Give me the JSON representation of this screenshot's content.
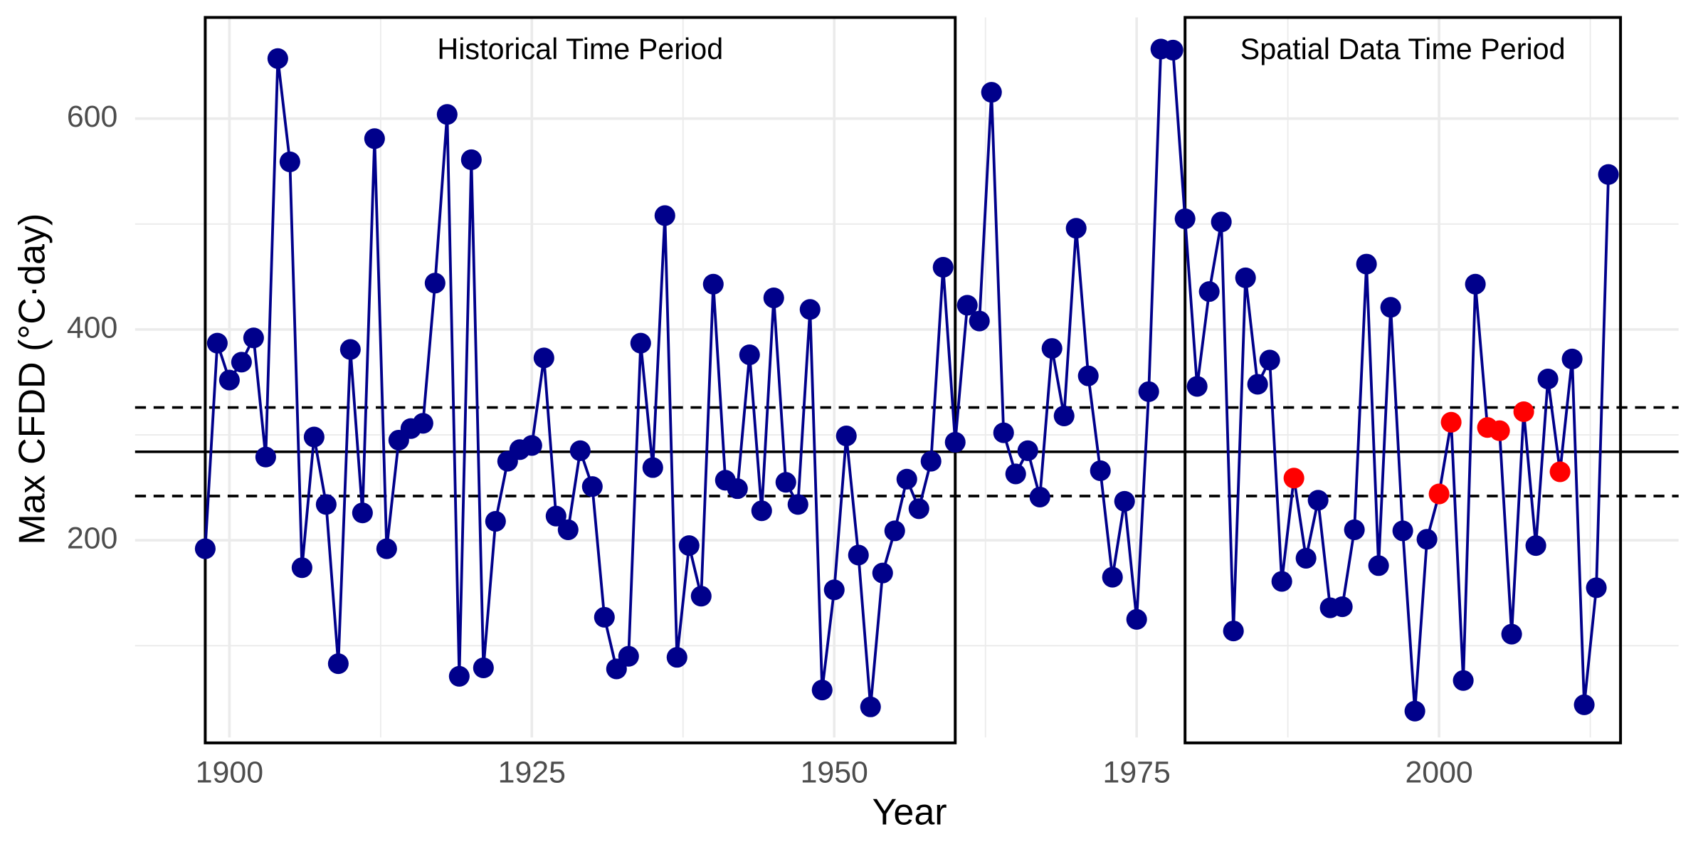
{
  "chart_data": {
    "type": "line",
    "x_label": "Year",
    "y_label": "Max CFDD (°C·day)",
    "x": [
      1898,
      1899,
      1900,
      1901,
      1902,
      1903,
      1904,
      1905,
      1906,
      1907,
      1908,
      1909,
      1910,
      1911,
      1912,
      1913,
      1914,
      1915,
      1916,
      1917,
      1918,
      1919,
      1920,
      1921,
      1922,
      1923,
      1924,
      1925,
      1926,
      1927,
      1928,
      1929,
      1930,
      1931,
      1932,
      1933,
      1934,
      1935,
      1936,
      1937,
      1938,
      1939,
      1940,
      1941,
      1942,
      1943,
      1944,
      1945,
      1946,
      1947,
      1948,
      1949,
      1950,
      1951,
      1952,
      1953,
      1954,
      1955,
      1956,
      1957,
      1958,
      1959,
      1960,
      1961,
      1962,
      1963,
      1964,
      1965,
      1966,
      1967,
      1968,
      1969,
      1970,
      1971,
      1972,
      1973,
      1974,
      1975,
      1976,
      1977,
      1978,
      1979,
      1980,
      1981,
      1982,
      1983,
      1984,
      1985,
      1986,
      1987,
      1988,
      1989,
      1990,
      1991,
      1992,
      1993,
      1994,
      1995,
      1996,
      1997,
      1998,
      1999,
      2000,
      2001,
      2002,
      2003,
      2004,
      2005,
      2006,
      2007,
      2008,
      2009,
      2010,
      2011,
      2012,
      2013,
      2014
    ],
    "values": [
      192,
      387,
      352,
      369,
      392,
      279,
      657,
      559,
      174,
      298,
      234,
      83,
      381,
      226,
      581,
      192,
      295,
      306,
      311,
      444,
      604,
      71,
      561,
      79,
      218,
      275,
      286,
      290,
      373,
      223,
      210,
      285,
      251,
      127,
      78,
      90,
      387,
      269,
      508,
      89,
      195,
      147,
      443,
      257,
      249,
      376,
      228,
      430,
      255,
      234,
      419,
      58,
      153,
      299,
      186,
      42,
      169,
      209,
      258,
      230,
      275,
      459,
      293,
      423,
      408,
      625,
      302,
      263,
      285,
      241,
      382,
      318,
      496,
      356,
      266,
      165,
      237,
      125,
      341,
      666,
      665,
      505,
      346,
      436,
      502,
      114,
      449,
      348,
      371,
      161,
      259,
      183,
      238,
      136,
      137,
      210,
      462,
      176,
      421,
      209,
      38,
      201,
      244,
      312,
      67,
      443,
      307,
      304,
      111,
      322,
      195,
      353,
      265,
      372,
      44,
      155,
      547
    ],
    "color": "#00008b",
    "highlight_x": [
      1988,
      2000,
      2001,
      2004,
      2005,
      2007,
      2010
    ],
    "highlight_color": "#ff0000",
    "hlines": [
      {
        "y": 284,
        "style": "solid"
      },
      {
        "y": 242,
        "style": "dashed"
      },
      {
        "y": 326,
        "style": "dashed"
      }
    ],
    "periods": [
      {
        "label": "Historical Time Period",
        "start": 1898,
        "end": 1960
      },
      {
        "label": "Spatial Data Time Period",
        "start": 1979,
        "end": 2015
      }
    ],
    "xlim": [
      1892.2,
      2019.8
    ],
    "xticks": [
      1900,
      1925,
      1950,
      1975,
      2000
    ],
    "minor_xticks": [
      1912.5,
      1937.5,
      1962.5,
      1987.5,
      2012.5
    ],
    "ylim": [
      13,
      696
    ],
    "yticks": [
      200,
      400,
      600
    ],
    "minor_yticks": [
      100,
      300,
      500
    ],
    "grid": true
  }
}
